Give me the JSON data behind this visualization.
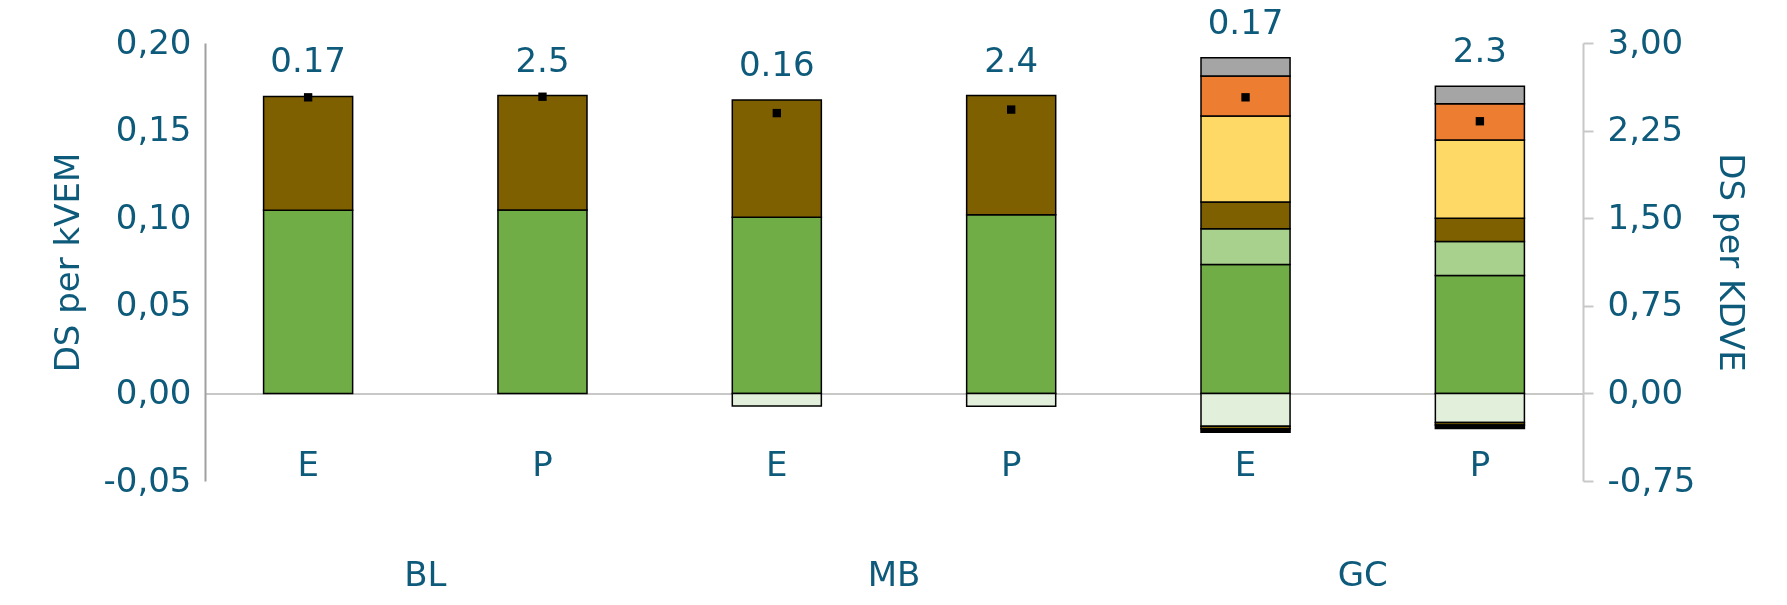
{
  "chart_data": {
    "type": "bar",
    "stacked": true,
    "marker": "square",
    "categories": [
      "E",
      "P",
      "E",
      "P",
      "E",
      "P"
    ],
    "annotations": [
      "BL",
      "MB",
      "GC"
    ],
    "ylabel": "DS per kVEM",
    "y2label": "DS per KDVE",
    "ylim": [
      -0.05,
      0.2
    ],
    "yticks": [
      {
        "value": -0.05,
        "label": "-0,05"
      },
      {
        "value": 0,
        "label": "0,00"
      },
      {
        "value": 0.05,
        "label": "0,05"
      },
      {
        "value": 0.1,
        "label": "0,10"
      },
      {
        "value": 0.15,
        "label": "0,15"
      },
      {
        "value": 0.2,
        "label": "0,20"
      }
    ],
    "y2lim": [
      -0.75,
      3.0
    ],
    "y2ticks": [
      {
        "value": -0.75,
        "label": "-0,75"
      },
      {
        "value": 0,
        "label": "0,00"
      },
      {
        "value": 0.75,
        "label": "0,75"
      },
      {
        "value": 1.5,
        "label": "1,50"
      },
      {
        "value": 2.25,
        "label": "2,25"
      },
      {
        "value": 3.0,
        "label": "3,00"
      }
    ],
    "series": [
      {
        "color": "#70ad47",
        "axis": "y",
        "values": [
          0.1045,
          null,
          0.1005,
          null,
          0.0736,
          null
        ]
      },
      {
        "color": "#70ad47",
        "axis": "y2",
        "values": [
          null,
          1.57,
          null,
          1.53,
          null,
          1.01
        ]
      },
      {
        "color": "#e2efda",
        "axis": "y",
        "values": [
          null,
          null,
          -0.0072,
          null,
          -0.0187,
          null
        ]
      },
      {
        "color": "#e2efda",
        "axis": "y2",
        "values": [
          null,
          null,
          null,
          -0.11,
          null,
          -0.25
        ]
      },
      {
        "color": "#a9d18e",
        "axis": "y",
        "values": [
          null,
          null,
          null,
          null,
          0.0204,
          null
        ]
      },
      {
        "color": "#a9d18e",
        "axis": "y2",
        "values": [
          null,
          null,
          null,
          null,
          null,
          0.29
        ]
      },
      {
        "color": "#7f6000",
        "axis": "y",
        "values": [
          0.065,
          null,
          0.067,
          null,
          0.0152,
          null
        ]
      },
      {
        "color": "#7f6000",
        "axis": "y2",
        "values": [
          null,
          0.98,
          null,
          1.02,
          null,
          0.2
        ]
      },
      {
        "color": "#7f6000",
        "axis": "y",
        "values": [
          null,
          null,
          null,
          null,
          -0.0015,
          null
        ]
      },
      {
        "color": "#7f6000",
        "axis": "y2",
        "values": [
          null,
          null,
          null,
          null,
          null,
          -0.02
        ]
      },
      {
        "color": "#ffd966",
        "axis": "y",
        "values": [
          null,
          null,
          null,
          null,
          0.0491,
          null
        ]
      },
      {
        "color": "#ffd966",
        "axis": "y2",
        "values": [
          null,
          null,
          null,
          null,
          null,
          0.67
        ]
      },
      {
        "color": "#ed7d31",
        "axis": "y",
        "values": [
          null,
          null,
          null,
          null,
          0.0228,
          null
        ]
      },
      {
        "color": "#ed7d31",
        "axis": "y2",
        "values": [
          null,
          null,
          null,
          null,
          null,
          0.31
        ]
      },
      {
        "color": "#a5a5a5",
        "axis": "y",
        "values": [
          null,
          null,
          null,
          null,
          0.0105,
          null
        ]
      },
      {
        "color": "#a5a5a5",
        "axis": "y2",
        "values": [
          null,
          null,
          null,
          null,
          null,
          0.15
        ]
      },
      {
        "color": "#000000",
        "axis": "y",
        "values": [
          null,
          null,
          null,
          null,
          -0.002,
          null
        ]
      },
      {
        "color": "#000000",
        "axis": "y2",
        "values": [
          null,
          null,
          null,
          null,
          null,
          -0.03
        ]
      },
      {
        "type": "scatter",
        "color": "#000000",
        "axis": "y",
        "values": [
          0.169,
          null,
          0.16,
          null,
          0.169,
          null
        ],
        "value_labels": [
          "0.17",
          null,
          "0.16",
          null,
          "0.17",
          null
        ]
      },
      {
        "type": "scatter",
        "color": "#000000",
        "axis": "y2",
        "values": [
          null,
          2.54,
          null,
          2.43,
          null,
          2.33
        ],
        "value_labels": [
          null,
          "2.5",
          null,
          "2.4",
          null,
          "2.3"
        ]
      }
    ]
  }
}
